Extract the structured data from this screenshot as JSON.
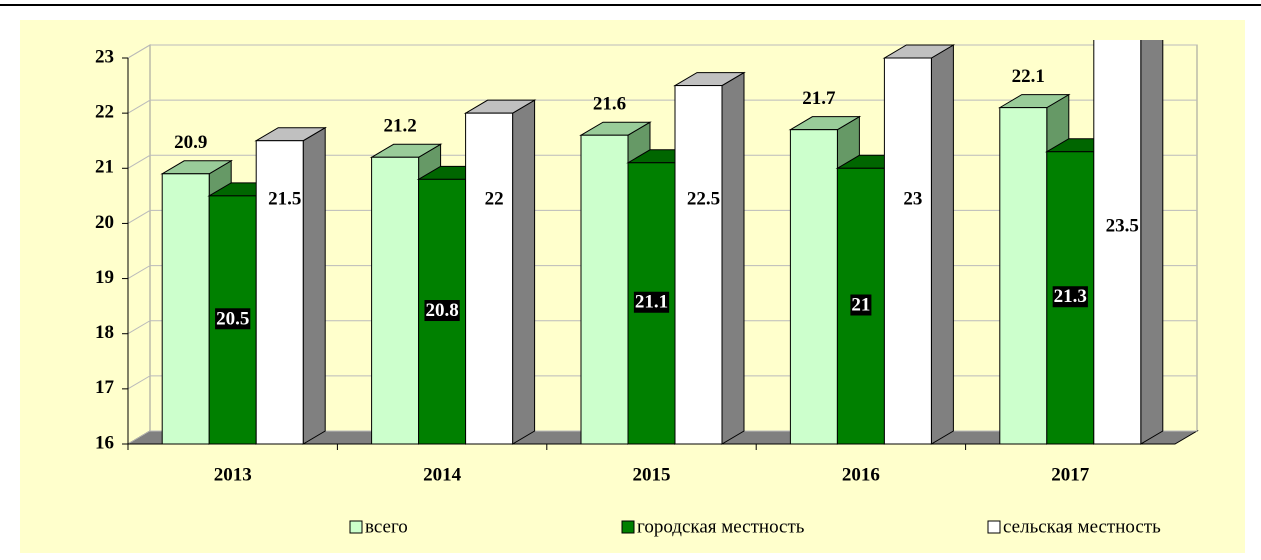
{
  "chart_data": {
    "type": "bar3d",
    "categories": [
      "2013",
      "2014",
      "2015",
      "2016",
      "2017"
    ],
    "series": [
      {
        "name": "всего",
        "color": "#ccffcc",
        "values": [
          20.9,
          21.2,
          21.6,
          21.7,
          22.1
        ]
      },
      {
        "name": "городская местность",
        "color": "#008000",
        "values": [
          20.5,
          20.8,
          21.1,
          21.0,
          21.3
        ]
      },
      {
        "name": "сельская местность",
        "color": "#ffffff",
        "values": [
          21.5,
          22.0,
          22.5,
          23.0,
          23.5
        ]
      }
    ],
    "ylim": [
      16,
      23
    ],
    "yticks": [
      16,
      17,
      18,
      19,
      20,
      21,
      22,
      23
    ],
    "grid": true,
    "legend": "bottom"
  }
}
